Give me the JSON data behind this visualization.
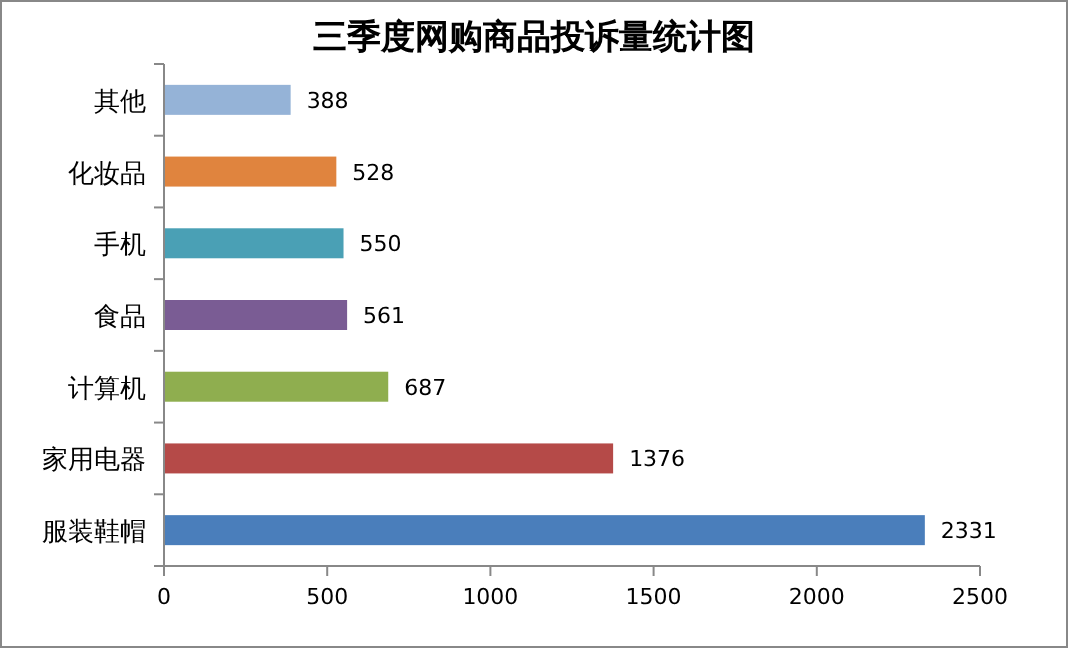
{
  "chart_data": {
    "type": "bar",
    "orientation": "horizontal",
    "title": "三季度网购商品投诉量统计图",
    "categories": [
      "其他",
      "化妆品",
      "手机",
      "食品",
      "计算机",
      "家用电器",
      "服装鞋帽"
    ],
    "values": [
      388,
      528,
      550,
      561,
      687,
      1376,
      2331
    ],
    "colors": [
      "#95b3d7",
      "#e0843e",
      "#4aa0b5",
      "#7a5c94",
      "#8fae4f",
      "#b54a48",
      "#4a7ebb"
    ],
    "xlim": [
      0,
      2500
    ],
    "xticks": [
      0,
      500,
      1000,
      1500,
      2000,
      2500
    ],
    "data_labels": true,
    "grid": false
  }
}
